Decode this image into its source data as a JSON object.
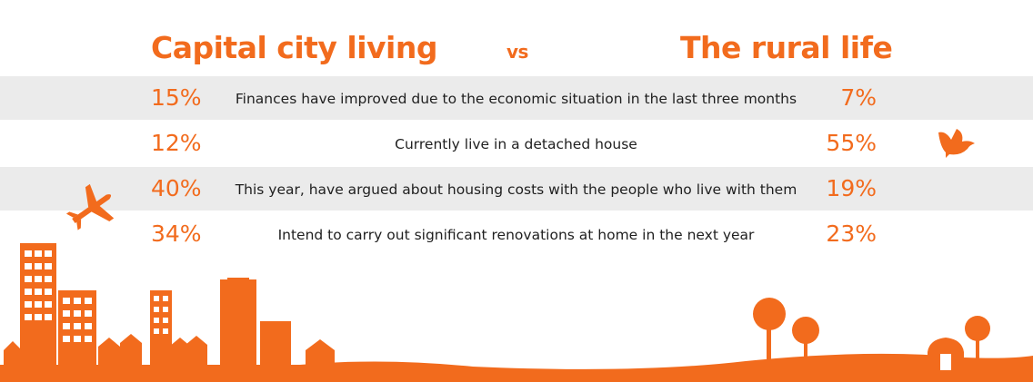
{
  "colors": {
    "accent": "#f26b1d",
    "row_shade": "#ebebeb",
    "text": "#1f1f1f"
  },
  "header": {
    "left_title": "Capital city living",
    "vs": "vs",
    "right_title": "The rural life"
  },
  "rows": [
    {
      "city": "15%",
      "label": "Finances have improved due to the economic situation in the last three months",
      "rural": "7%"
    },
    {
      "city": "12%",
      "label": "Currently live in a detached house",
      "rural": "55%"
    },
    {
      "city": "40%",
      "label": "This year, have argued about housing costs with the people who live with them",
      "rural": "19%"
    },
    {
      "city": "34%",
      "label": "Intend to carry out significant renovations at home in the next year",
      "rural": "23%"
    }
  ],
  "icons": [
    "airplane-icon",
    "bird-icon",
    "city-skyline-icon",
    "trees-icon",
    "barn-icon"
  ]
}
